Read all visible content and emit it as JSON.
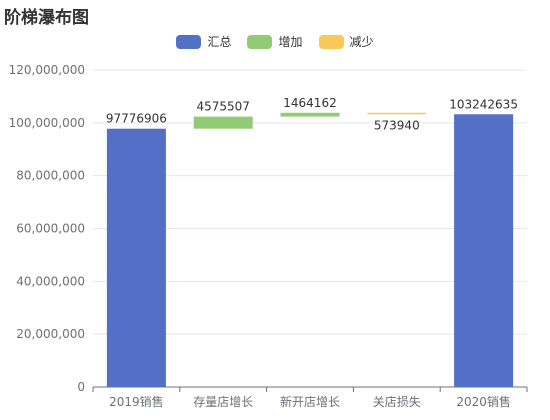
{
  "chart_data": {
    "type": "bar",
    "variant": "waterfall",
    "title": "阶梯瀑布图",
    "categories": [
      "2019销售",
      "存量店增长",
      "新开店增长",
      "关店损失",
      "2020销售"
    ],
    "legend": [
      {
        "name": "汇总",
        "color": "#5470c6"
      },
      {
        "name": "增加",
        "color": "#91cc75"
      },
      {
        "name": "减少",
        "color": "#fac858"
      }
    ],
    "bars": [
      {
        "category": "2019销售",
        "kind": "汇总",
        "base": 0,
        "value": 97776906,
        "label": "97776906"
      },
      {
        "category": "存量店增长",
        "kind": "增加",
        "base": 97776906,
        "value": 4575507,
        "label": "4575507"
      },
      {
        "category": "新开店增长",
        "kind": "增加",
        "base": 102352413,
        "value": 1464162,
        "label": "1464162"
      },
      {
        "category": "关店损失",
        "kind": "减少",
        "base": 103242635,
        "value": 573940,
        "label": "573940"
      },
      {
        "category": "2020销售",
        "kind": "汇总",
        "base": 0,
        "value": 103242635,
        "label": "103242635"
      }
    ],
    "ylim": [
      0,
      120000000
    ],
    "yticks": [
      "0",
      "20,000,000",
      "40,000,000",
      "60,000,000",
      "80,000,000",
      "100,000,000",
      "120,000,000"
    ],
    "grid": true,
    "legend_position": "top-center"
  }
}
